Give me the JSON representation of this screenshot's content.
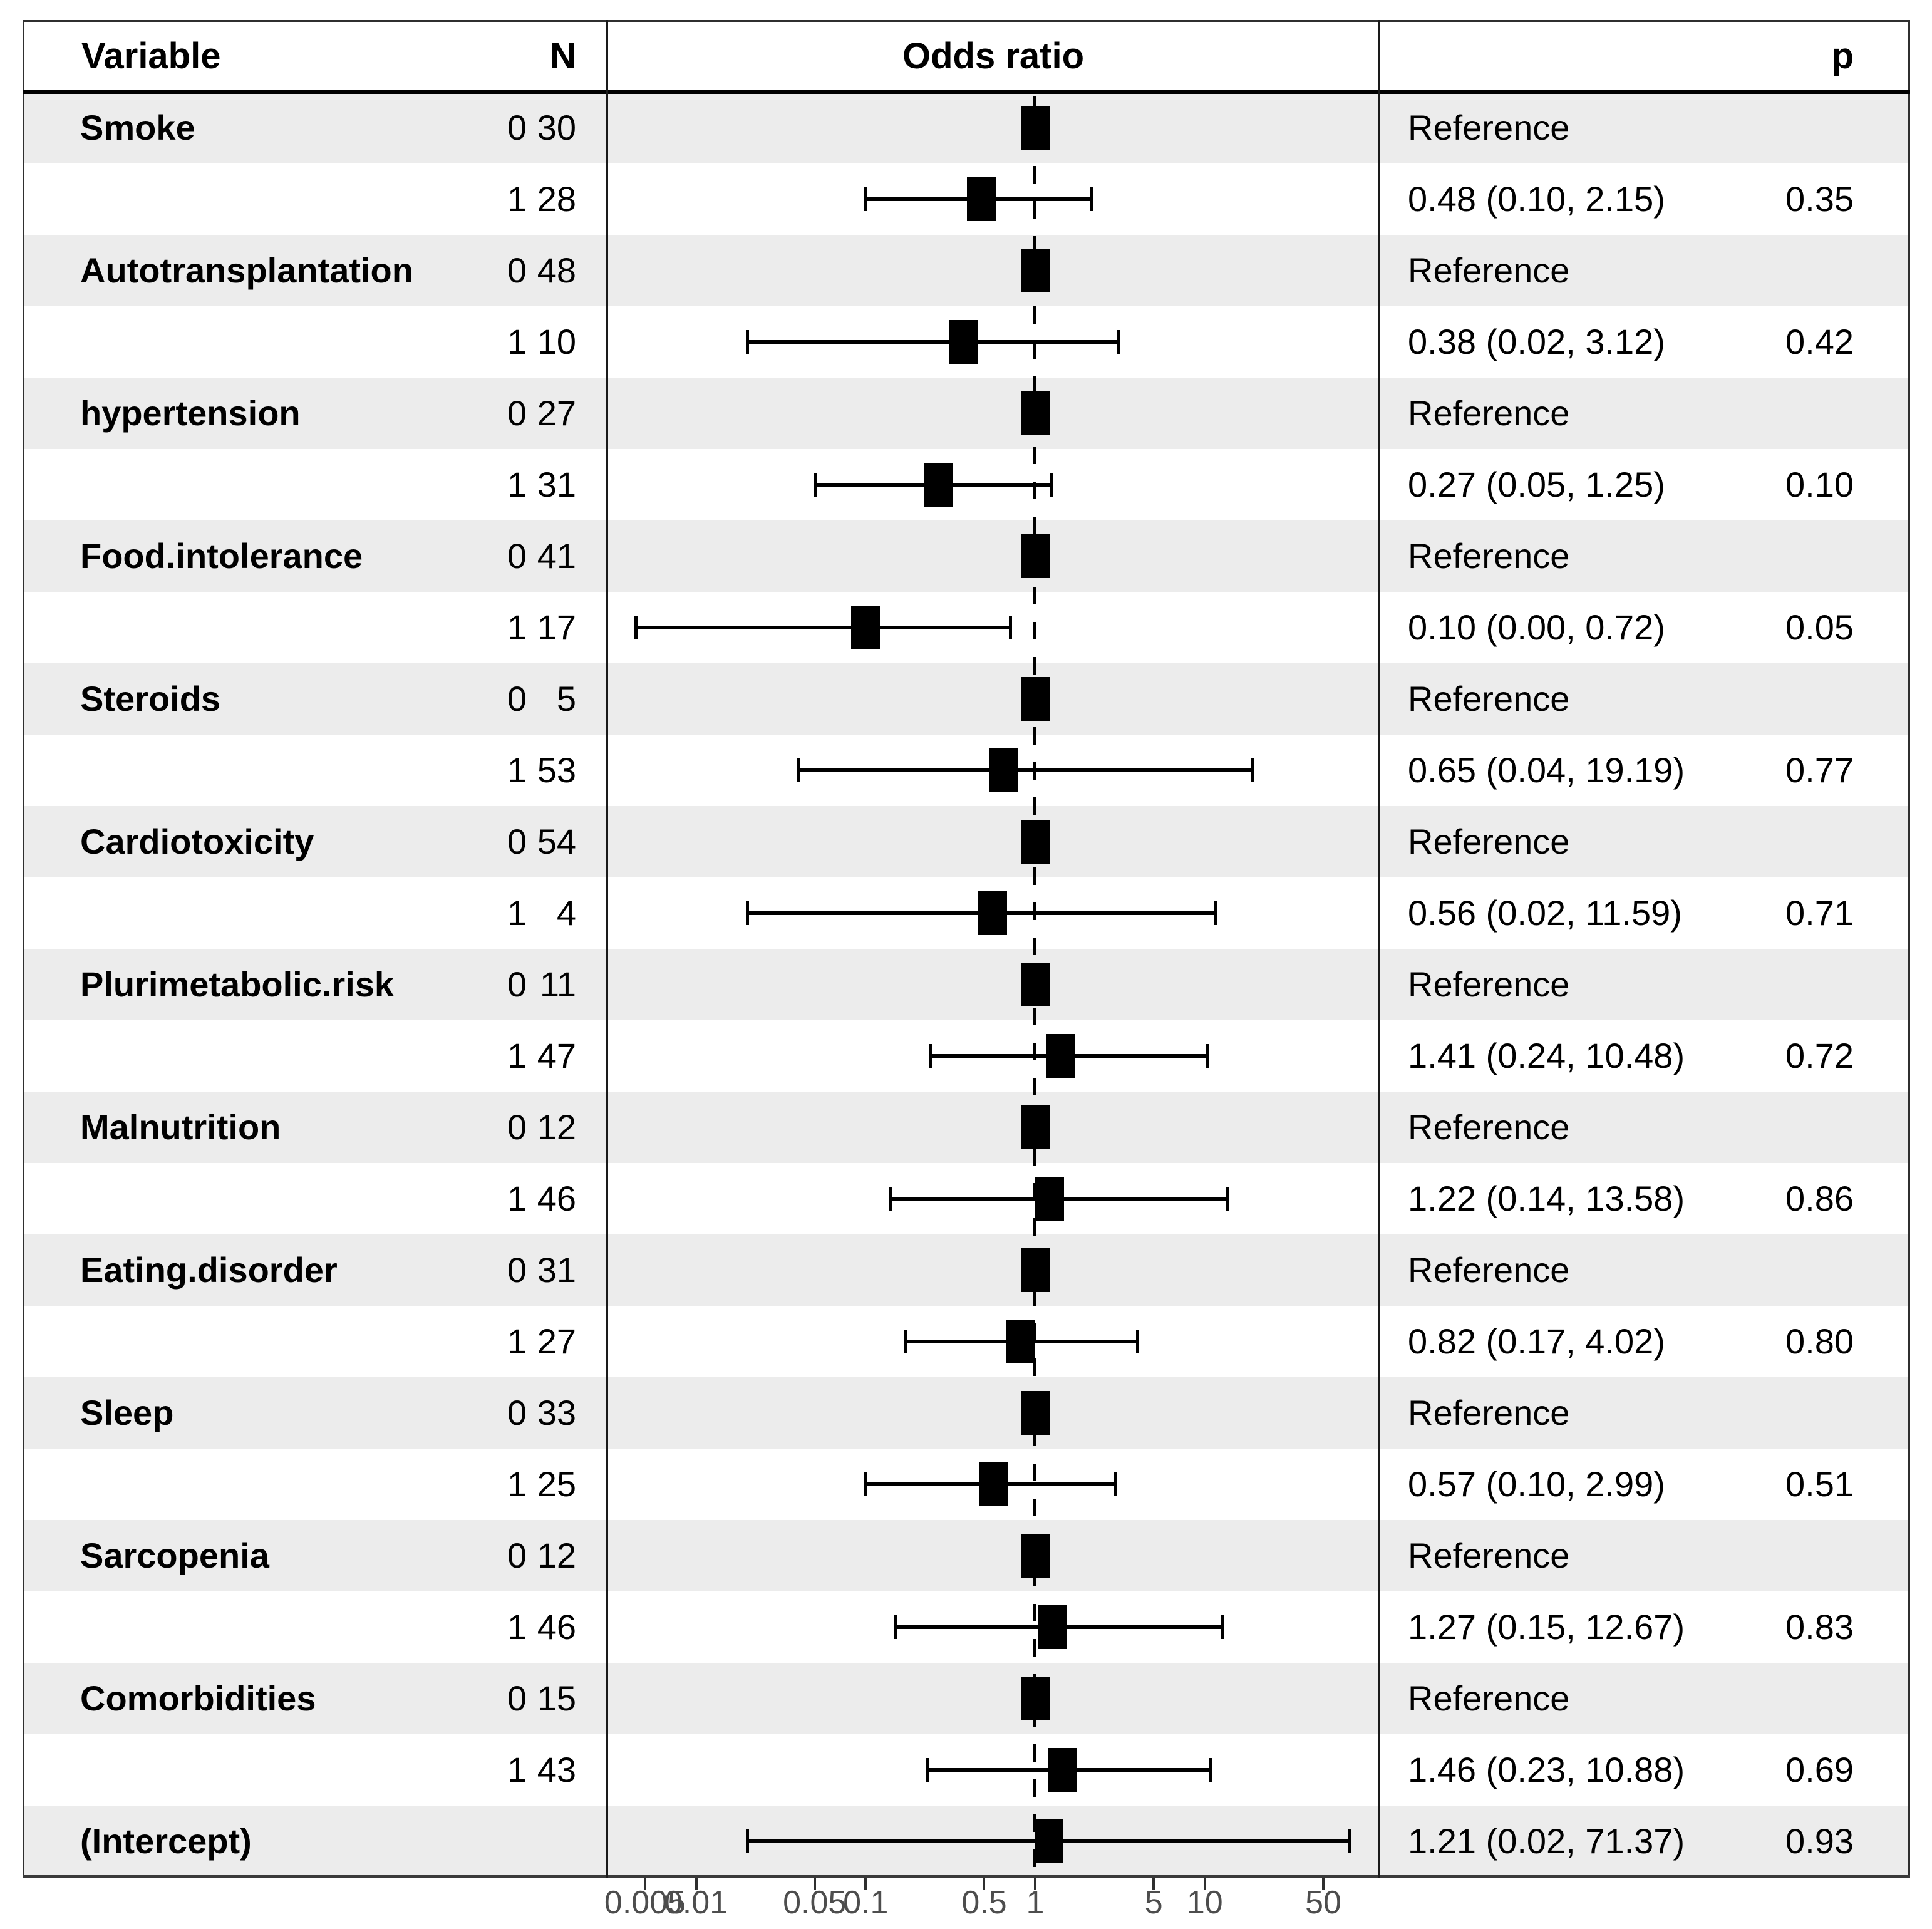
{
  "header": {
    "variable": "Variable",
    "n": "N",
    "odds_ratio": "Odds ratio",
    "p": "p"
  },
  "chart_data": {
    "type": "forest",
    "title": "Odds ratio",
    "x_scale": "log10",
    "reference_line": 1,
    "x_range": [
      0.003,
      108
    ],
    "grid": false,
    "x_ticks": [
      {
        "label": "0.005",
        "value": 0.005
      },
      {
        "label": "0.01",
        "value": 0.01
      },
      {
        "label": "0.05",
        "value": 0.05
      },
      {
        "label": "0.1",
        "value": 0.1
      },
      {
        "label": "0.5",
        "value": 0.5
      },
      {
        "label": "1",
        "value": 1
      },
      {
        "label": "5",
        "value": 5
      },
      {
        "label": "10",
        "value": 10
      },
      {
        "label": "50",
        "value": 50
      }
    ],
    "rows": [
      {
        "variable": "Smoke",
        "level": "0",
        "n": "30",
        "reference": true,
        "estimate": "Reference",
        "p": ""
      },
      {
        "variable": "",
        "level": "1",
        "n": "28",
        "reference": false,
        "or": 0.48,
        "ci_low": 0.1,
        "ci_high": 2.15,
        "plot_low": 0.1,
        "plot_high": 2.15,
        "estimate": "0.48 (0.10, 2.15)",
        "p": "0.35"
      },
      {
        "variable": "Autotransplantation",
        "level": "0",
        "n": "48",
        "reference": true,
        "estimate": "Reference",
        "p": ""
      },
      {
        "variable": "",
        "level": "1",
        "n": "10",
        "reference": false,
        "or": 0.38,
        "ci_low": 0.02,
        "ci_high": 3.12,
        "plot_low": 0.02,
        "plot_high": 3.12,
        "estimate": "0.38 (0.02, 3.12)",
        "p": "0.42"
      },
      {
        "variable": "hypertension",
        "level": "0",
        "n": "27",
        "reference": true,
        "estimate": "Reference",
        "p": ""
      },
      {
        "variable": "",
        "level": "1",
        "n": "31",
        "reference": false,
        "or": 0.27,
        "ci_low": 0.05,
        "ci_high": 1.25,
        "plot_low": 0.05,
        "plot_high": 1.25,
        "estimate": "0.27 (0.05, 1.25)",
        "p": "0.10"
      },
      {
        "variable": "Food.intolerance",
        "level": "0",
        "n": "41",
        "reference": true,
        "estimate": "Reference",
        "p": ""
      },
      {
        "variable": "",
        "level": "1",
        "n": "17",
        "reference": false,
        "or": 0.1,
        "ci_low": 0.0,
        "ci_high": 0.72,
        "plot_low": 0.0044,
        "plot_high": 0.72,
        "estimate": "0.10 (0.00, 0.72)",
        "p": "0.05"
      },
      {
        "variable": "Steroids",
        "level": "0",
        "n": "5",
        "reference": true,
        "estimate": "Reference",
        "p": ""
      },
      {
        "variable": "",
        "level": "1",
        "n": "53",
        "reference": false,
        "or": 0.65,
        "ci_low": 0.04,
        "ci_high": 19.19,
        "plot_low": 0.04,
        "plot_high": 19.19,
        "estimate": "0.65 (0.04, 19.19)",
        "p": "0.77"
      },
      {
        "variable": "Cardiotoxicity",
        "level": "0",
        "n": "54",
        "reference": true,
        "estimate": "Reference",
        "p": ""
      },
      {
        "variable": "",
        "level": "1",
        "n": "4",
        "reference": false,
        "or": 0.56,
        "ci_low": 0.02,
        "ci_high": 11.59,
        "plot_low": 0.02,
        "plot_high": 11.59,
        "estimate": "0.56 (0.02, 11.59)",
        "p": "0.71"
      },
      {
        "variable": "Plurimetabolic.risk",
        "level": "0",
        "n": "11",
        "reference": true,
        "estimate": "Reference",
        "p": ""
      },
      {
        "variable": "",
        "level": "1",
        "n": "47",
        "reference": false,
        "or": 1.41,
        "ci_low": 0.24,
        "ci_high": 10.48,
        "plot_low": 0.24,
        "plot_high": 10.48,
        "estimate": "1.41 (0.24, 10.48)",
        "p": "0.72"
      },
      {
        "variable": "Malnutrition",
        "level": "0",
        "n": "12",
        "reference": true,
        "estimate": "Reference",
        "p": ""
      },
      {
        "variable": "",
        "level": "1",
        "n": "46",
        "reference": false,
        "or": 1.22,
        "ci_low": 0.14,
        "ci_high": 13.58,
        "plot_low": 0.14,
        "plot_high": 13.58,
        "estimate": "1.22 (0.14, 13.58)",
        "p": "0.86"
      },
      {
        "variable": "Eating.disorder",
        "level": "0",
        "n": "31",
        "reference": true,
        "estimate": "Reference",
        "p": ""
      },
      {
        "variable": "",
        "level": "1",
        "n": "27",
        "reference": false,
        "or": 0.82,
        "ci_low": 0.17,
        "ci_high": 4.02,
        "plot_low": 0.17,
        "plot_high": 4.02,
        "estimate": "0.82 (0.17, 4.02)",
        "p": "0.80"
      },
      {
        "variable": "Sleep",
        "level": "0",
        "n": "33",
        "reference": true,
        "estimate": "Reference",
        "p": ""
      },
      {
        "variable": "",
        "level": "1",
        "n": "25",
        "reference": false,
        "or": 0.57,
        "ci_low": 0.1,
        "ci_high": 2.99,
        "plot_low": 0.1,
        "plot_high": 2.99,
        "estimate": "0.57 (0.10, 2.99)",
        "p": "0.51"
      },
      {
        "variable": "Sarcopenia",
        "level": "0",
        "n": "12",
        "reference": true,
        "estimate": "Reference",
        "p": ""
      },
      {
        "variable": "",
        "level": "1",
        "n": "46",
        "reference": false,
        "or": 1.27,
        "ci_low": 0.15,
        "ci_high": 12.67,
        "plot_low": 0.15,
        "plot_high": 12.67,
        "estimate": "1.27 (0.15, 12.67)",
        "p": "0.83"
      },
      {
        "variable": "Comorbidities",
        "level": "0",
        "n": "15",
        "reference": true,
        "estimate": "Reference",
        "p": ""
      },
      {
        "variable": "",
        "level": "1",
        "n": "43",
        "reference": false,
        "or": 1.46,
        "ci_low": 0.23,
        "ci_high": 10.88,
        "plot_low": 0.23,
        "plot_high": 10.88,
        "estimate": "1.46 (0.23, 10.88)",
        "p": "0.69"
      },
      {
        "variable": "(Intercept)",
        "level": "",
        "n": "",
        "reference": false,
        "or": 1.21,
        "ci_low": 0.02,
        "ci_high": 71.37,
        "plot_low": 0.02,
        "plot_high": 71.37,
        "estimate": "1.21 (0.02, 71.37)",
        "p": "0.93"
      }
    ],
    "colors": {
      "stripe": "#ececec",
      "marker": "#000000",
      "axis_label": "#4d4d4d",
      "border": "#2f2f2f"
    }
  }
}
